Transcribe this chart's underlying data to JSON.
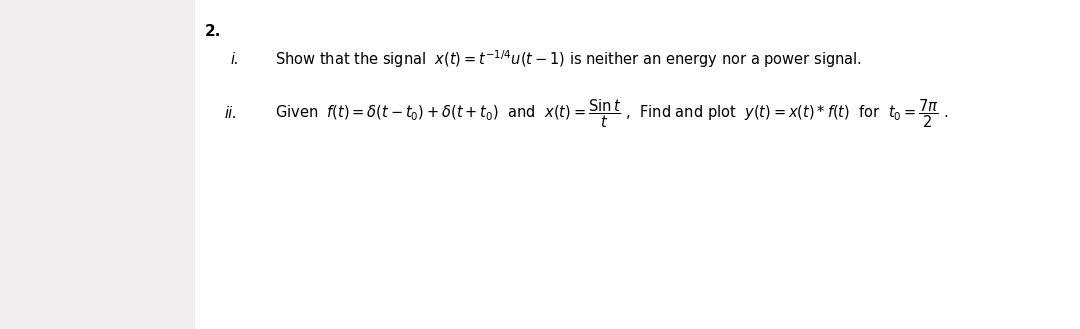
{
  "background_color": "#f0eeee",
  "text_area_color": "#ffffff",
  "fig_width": 10.8,
  "fig_height": 3.29,
  "dpi": 100,
  "number_label": "2.",
  "number_fontsize": 11,
  "items": [
    {
      "label": "i.",
      "fontsize": 10.5,
      "line1": "Show that the signal  $x(t) = t^{-1/4}u(t-1)$ is neither an energy nor a power signal."
    },
    {
      "label": "ii.",
      "fontsize": 10.5,
      "line1": "Given  $f(t) = \\delta(t-t_0)+\\delta(t+t_0)$  and  $x(t) = \\dfrac{\\mathrm{Sin}\\,t}{t}$ ,  Find and plot  $y(t) = x(t)*f(t)$  for  $t_0 = \\dfrac{7\\pi}{2}$ ."
    }
  ]
}
